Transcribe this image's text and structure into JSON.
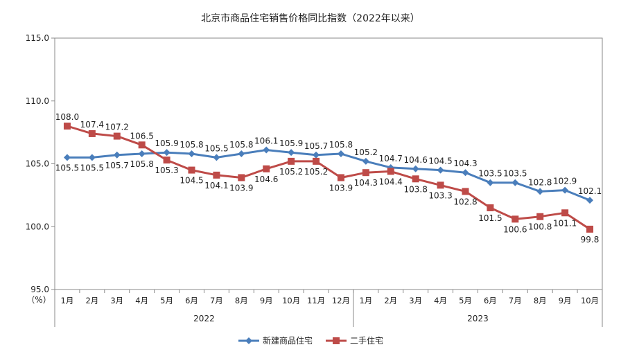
{
  "chart_data": {
    "type": "line",
    "title": "北京市商品住宅销售价格同比指数（2022年以来）",
    "y_unit": "（%）",
    "ylim": [
      95.0,
      115.0
    ],
    "yticks": [
      "95.0",
      "100.0",
      "105.0",
      "110.0",
      "115.0"
    ],
    "categories": [
      "1月",
      "2月",
      "3月",
      "4月",
      "5月",
      "6月",
      "7月",
      "8月",
      "9月",
      "10月",
      "11月",
      "12月",
      "1月",
      "2月",
      "3月",
      "4月",
      "5月",
      "6月",
      "7月",
      "8月",
      "9月",
      "10月"
    ],
    "year_groups": [
      {
        "label": "2022",
        "count": 12
      },
      {
        "label": "2023",
        "count": 10
      }
    ],
    "series": [
      {
        "name": "新建商品住宅",
        "color": "#4a7ebb",
        "marker": "diamond",
        "values": [
          105.5,
          105.5,
          105.7,
          105.8,
          105.9,
          105.8,
          105.5,
          105.8,
          106.1,
          105.9,
          105.7,
          105.8,
          105.2,
          104.7,
          104.6,
          104.5,
          104.3,
          103.5,
          103.5,
          102.8,
          102.9,
          102.1
        ],
        "labels": [
          "105.5",
          "105.5",
          "105.7",
          "105.8",
          "105.9",
          "105.8",
          "105.5",
          "105.8",
          "106.1",
          "105.9",
          "105.7",
          "105.8",
          "105.2",
          "104.7",
          "104.6",
          "104.5",
          "104.3",
          "103.5",
          "103.5",
          "102.8",
          "102.9",
          "102.1"
        ]
      },
      {
        "name": "二手住宅",
        "color": "#be4b48",
        "marker": "square",
        "values": [
          108.0,
          107.4,
          107.2,
          106.5,
          105.3,
          104.5,
          104.1,
          103.9,
          104.6,
          105.2,
          105.2,
          103.9,
          104.3,
          104.4,
          103.8,
          103.3,
          102.8,
          101.5,
          100.6,
          100.8,
          101.1,
          99.8
        ],
        "labels": [
          "108.0",
          "107.4",
          "107.2",
          "106.5",
          "105.3",
          "104.5",
          "104.1",
          "103.9",
          "104.6",
          "105.2",
          "105.2",
          "103.9",
          "104.3",
          "104.4",
          "103.8",
          "103.3",
          "102.8",
          "101.5",
          "100.6",
          "100.8",
          "101.1",
          "99.8"
        ]
      }
    ],
    "grid": false,
    "legend_position": "bottom"
  }
}
